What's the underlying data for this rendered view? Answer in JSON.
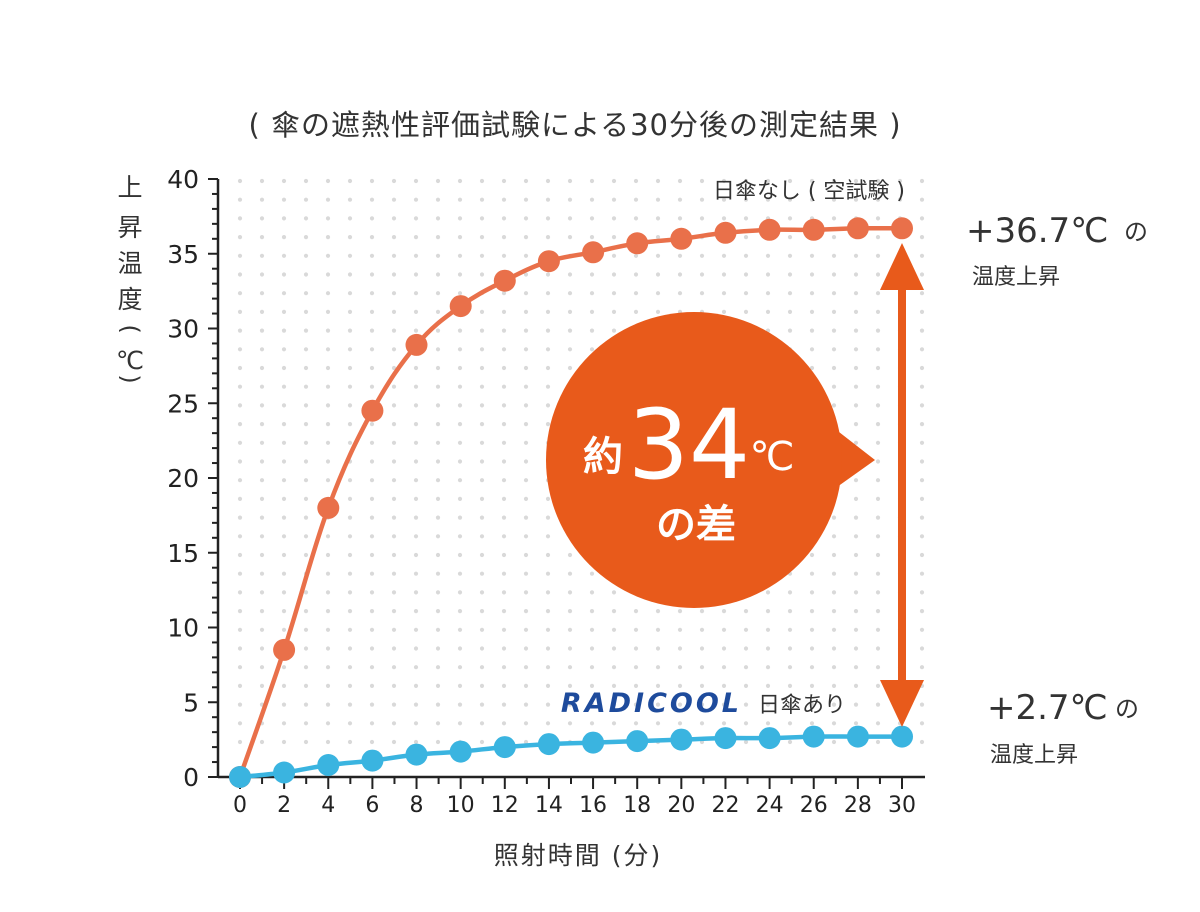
{
  "chart_data": {
    "type": "line",
    "title": "( 傘の遮熱性評価試験による30分後の測定結果 )",
    "xlabel": "照射時間 (分)",
    "ylabel_chars": [
      "上",
      "昇",
      "温",
      "度",
      "(",
      "℃",
      ")"
    ],
    "x": [
      0,
      2,
      4,
      6,
      8,
      10,
      12,
      14,
      16,
      18,
      20,
      22,
      24,
      26,
      28,
      30
    ],
    "xlim": [
      0,
      30
    ],
    "ylim": [
      0,
      40
    ],
    "yticks": [
      0,
      5,
      10,
      15,
      20,
      25,
      30,
      35,
      40
    ],
    "grid": "dotted",
    "series": [
      {
        "name": "日傘なし ( 空試験 )",
        "color": "#e9704a",
        "values": [
          0,
          8.5,
          18,
          24.5,
          28.9,
          31.5,
          33.2,
          34.5,
          35.1,
          35.7,
          36.0,
          36.4,
          36.6,
          36.6,
          36.7,
          36.7
        ]
      },
      {
        "name_brand": "RADICOOL",
        "name_suffix": "日傘あり",
        "brand_color": "#1e4b9c",
        "color": "#3ab4e0",
        "values": [
          0,
          0.3,
          0.8,
          1.1,
          1.5,
          1.7,
          2.0,
          2.2,
          2.3,
          2.4,
          2.5,
          2.6,
          2.6,
          2.7,
          2.7,
          2.7
        ]
      }
    ],
    "annotations": {
      "difference_prefix": "約",
      "difference_value": "34",
      "difference_unit": "℃",
      "difference_suffix": "の差",
      "bubble_color": "#e85a1b",
      "arrow_color": "#e85a1b",
      "top_value": "+36.7℃",
      "top_particle": "の",
      "top_caption": "温度上昇",
      "bottom_value": "+2.7℃",
      "bottom_particle": "の",
      "bottom_caption": "温度上昇"
    }
  }
}
